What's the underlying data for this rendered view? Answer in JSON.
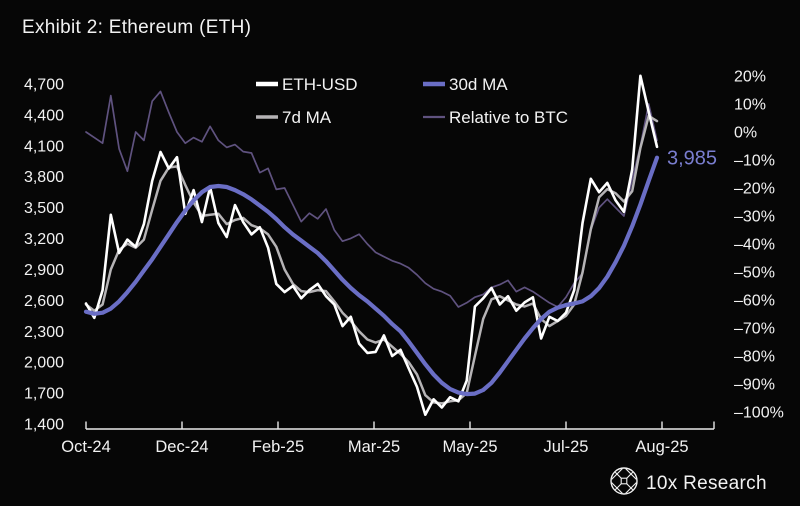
{
  "title": "Exhibit 2: Ethereum (ETH)",
  "watermark": {
    "brand": "10x Research",
    "icon": "globe-lattice-icon"
  },
  "annotation": {
    "label": "3,985",
    "series": "30d MA",
    "value": 3985
  },
  "colors": {
    "background": "#060606",
    "text": "#f2f2f2",
    "axis": "#e8e8e8",
    "eth_usd": "#ffffff",
    "ma7": "#b5b3b5",
    "ma30": "#6a6ec5",
    "rel_btc": "#5f527f",
    "annotation": "#7a7ed0"
  },
  "chart_data": {
    "type": "line",
    "title": "Exhibit 2: Ethereum (ETH)",
    "x_tick_labels": [
      "Oct-24",
      "Dec-24",
      "Feb-25",
      "Mar-25",
      "May-25",
      "Jul-25",
      "Aug-25"
    ],
    "left_axis": {
      "tick_labels": [
        "4,700",
        "4,400",
        "4,100",
        "3,800",
        "3,500",
        "3,200",
        "2,900",
        "2,600",
        "2,300",
        "2,000",
        "1,700",
        "1,400"
      ],
      "max": 4700,
      "min": 1400,
      "step": 300
    },
    "right_axis": {
      "tick_labels": [
        "20%",
        "10%",
        "0%",
        "–10%",
        "–20%",
        "–30%",
        "–40%",
        "–50%",
        "–60%",
        "–70%",
        "–80%",
        "–90%",
        "–100%"
      ],
      "max": 20,
      "min": -100,
      "step": 10,
      "unit": "%"
    },
    "grid": false,
    "legend": {
      "position": "top-inside",
      "items": [
        "ETH-USD",
        "30d MA",
        "7d MA",
        "Relative to BTC"
      ]
    },
    "sampling_note": "values sampled at 70 evenly spaced points, Oct-2024 to mid-Aug-2025",
    "series": [
      {
        "name": "Relative to BTC",
        "axis": "right",
        "color_key": "rel_btc",
        "width": 1.7,
        "values": [
          0,
          -2,
          -4,
          13,
          -6,
          -14,
          0,
          -3,
          11,
          14.5,
          7,
          0,
          -4,
          -2,
          -3.5,
          2,
          -3,
          -5.5,
          -4.5,
          -7,
          -7.5,
          -14.5,
          -13,
          -20.5,
          -20,
          -26,
          -32,
          -29,
          -31,
          -27.5,
          -35,
          -39,
          -38,
          -36.5,
          -40,
          -43,
          -44.5,
          -46,
          -47,
          -48.5,
          -51,
          -54,
          -56,
          -57,
          -58.5,
          -62.5,
          -61,
          -59,
          -58,
          -55.5,
          -54.5,
          -53,
          -57,
          -55.5,
          -57,
          -59,
          -61,
          -62.5,
          -59,
          -54,
          -50.5,
          -35,
          -27,
          -24,
          -27,
          -30,
          -17,
          -5,
          10,
          -3
        ]
      },
      {
        "name": "7d MA",
        "axis": "left",
        "color_key": "ma7",
        "width": 2.5,
        "values": [
          2560,
          2500,
          2560,
          2900,
          3090,
          3150,
          3110,
          3190,
          3480,
          3760,
          3890,
          3900,
          3720,
          3550,
          3420,
          3430,
          3440,
          3340,
          3380,
          3400,
          3330,
          3300,
          3240,
          3120,
          2900,
          2760,
          2690,
          2680,
          2700,
          2690,
          2590,
          2480,
          2400,
          2300,
          2220,
          2190,
          2220,
          2150,
          2080,
          2000,
          1880,
          1680,
          1610,
          1600,
          1620,
          1630,
          1700,
          2060,
          2420,
          2610,
          2640,
          2600,
          2560,
          2540,
          2570,
          2420,
          2350,
          2400,
          2450,
          2560,
          2870,
          3290,
          3600,
          3680,
          3640,
          3560,
          3660,
          4080,
          4390,
          4340
        ]
      },
      {
        "name": "ETH-USD",
        "axis": "left",
        "color_key": "eth_usd",
        "width": 2.6,
        "values": [
          2570,
          2430,
          2700,
          3430,
          3060,
          3190,
          3120,
          3340,
          3760,
          4040,
          3880,
          3990,
          3440,
          3670,
          3360,
          3700,
          3350,
          3215,
          3525,
          3360,
          3240,
          3310,
          3110,
          2760,
          2680,
          2740,
          2620,
          2700,
          2760,
          2640,
          2560,
          2350,
          2440,
          2180,
          2090,
          2100,
          2260,
          2060,
          2120,
          1940,
          1760,
          1490,
          1640,
          1560,
          1660,
          1620,
          1820,
          2540,
          2620,
          2720,
          2560,
          2640,
          2500,
          2580,
          2630,
          2230,
          2440,
          2400,
          2480,
          2700,
          3350,
          3780,
          3650,
          3740,
          3570,
          3460,
          3870,
          4780,
          4430,
          4090
        ]
      },
      {
        "name": "30d MA",
        "axis": "left",
        "color_key": "ma30",
        "width": 4.2,
        "values": [
          2490,
          2470,
          2480,
          2520,
          2590,
          2680,
          2780,
          2890,
          3000,
          3120,
          3240,
          3360,
          3470,
          3570,
          3650,
          3700,
          3710,
          3700,
          3670,
          3630,
          3580,
          3520,
          3460,
          3390,
          3310,
          3240,
          3180,
          3120,
          3060,
          2980,
          2890,
          2800,
          2720,
          2650,
          2590,
          2520,
          2450,
          2370,
          2300,
          2200,
          2090,
          1980,
          1880,
          1800,
          1740,
          1705,
          1690,
          1695,
          1730,
          1800,
          1900,
          2010,
          2120,
          2230,
          2330,
          2420,
          2490,
          2530,
          2555,
          2570,
          2590,
          2640,
          2720,
          2830,
          2970,
          3130,
          3320,
          3530,
          3760,
          3985
        ]
      }
    ]
  }
}
